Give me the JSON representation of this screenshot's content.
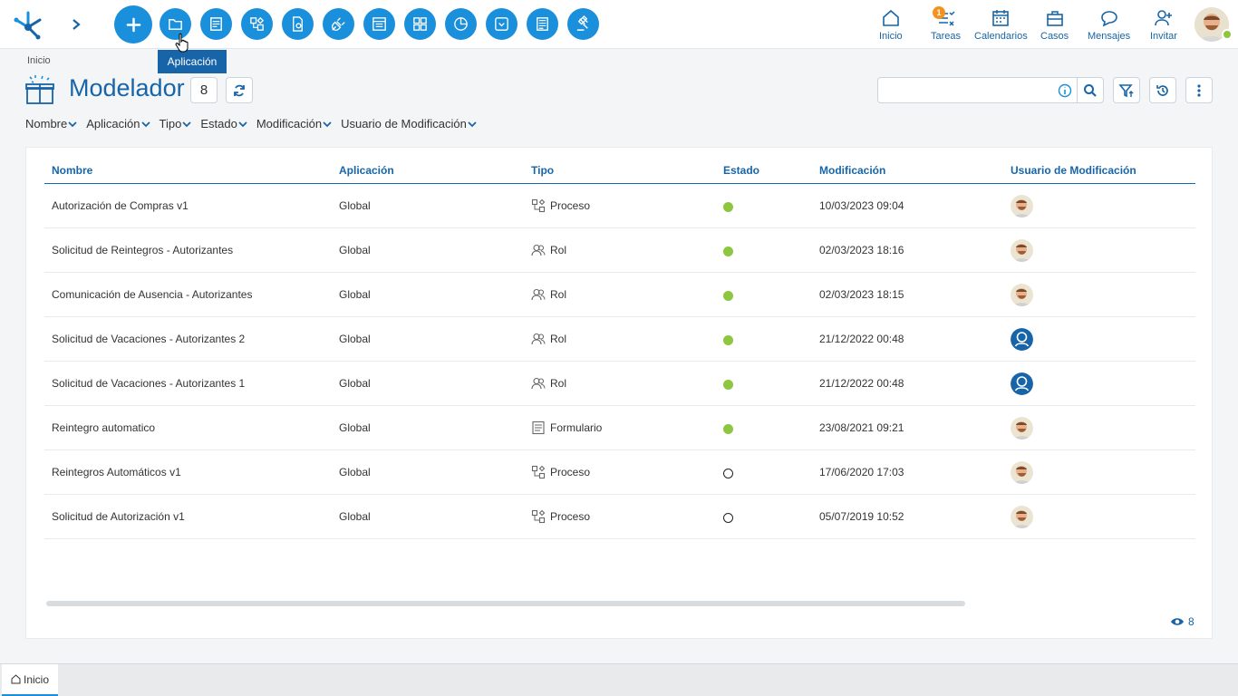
{
  "tooltip": "Aplicación",
  "nav": {
    "home": "Inicio",
    "tasks": "Tareas",
    "tasks_badge": "1",
    "calendars": "Calendarios",
    "cases": "Casos",
    "messages": "Mensajes",
    "invite": "Invitar"
  },
  "header": {
    "breadcrumb": "Inicio",
    "title": "Modelador",
    "count": "8",
    "search_placeholder": ""
  },
  "filters": [
    "Nombre",
    "Aplicación",
    "Tipo",
    "Estado",
    "Modificación",
    "Usuario de Modificación"
  ],
  "table": {
    "columns": [
      "Nombre",
      "Aplicación",
      "Tipo",
      "Estado",
      "Modificación",
      "Usuario de Modificación"
    ],
    "rows": [
      {
        "name": "Autorización de Compras v1",
        "app": "Global",
        "type": "Proceso",
        "type_icon": "process-icon",
        "status": "active",
        "modified": "10/03/2023 09:04",
        "user_avatar": "photo"
      },
      {
        "name": "Solicitud de Reintegros - Autorizantes",
        "app": "Global",
        "type": "Rol",
        "type_icon": "role-icon",
        "status": "active",
        "modified": "02/03/2023 18:16",
        "user_avatar": "photo"
      },
      {
        "name": "Comunicación de Ausencia - Autorizantes",
        "app": "Global",
        "type": "Rol",
        "type_icon": "role-icon",
        "status": "active",
        "modified": "02/03/2023 18:15",
        "user_avatar": "photo"
      },
      {
        "name": "Solicitud de Vacaciones - Autorizantes 2",
        "app": "Global",
        "type": "Rol",
        "type_icon": "role-icon",
        "status": "active",
        "modified": "21/12/2022 00:48",
        "user_avatar": "system"
      },
      {
        "name": "Solicitud de Vacaciones - Autorizantes 1",
        "app": "Global",
        "type": "Rol",
        "type_icon": "role-icon",
        "status": "active",
        "modified": "21/12/2022 00:48",
        "user_avatar": "system"
      },
      {
        "name": "Reintegro automatico",
        "app": "Global",
        "type": "Formulario",
        "type_icon": "form-icon",
        "status": "active",
        "modified": "23/08/2021 09:21",
        "user_avatar": "photo"
      },
      {
        "name": "Reintegros Automáticos v1",
        "app": "Global",
        "type": "Proceso",
        "type_icon": "process-icon",
        "status": "inactive",
        "modified": "17/06/2020 17:03",
        "user_avatar": "photo"
      },
      {
        "name": "Solicitud de Autorización v1",
        "app": "Global",
        "type": "Proceso",
        "type_icon": "process-icon",
        "status": "inactive",
        "modified": "05/07/2019 10:52",
        "user_avatar": "photo"
      }
    ]
  },
  "view_count": "8",
  "bottom_tab": "Inicio",
  "colors": {
    "primary": "#1765a8",
    "accent": "#1a8fdc",
    "active_status": "#8dc63f",
    "badge": "#f5921e"
  }
}
